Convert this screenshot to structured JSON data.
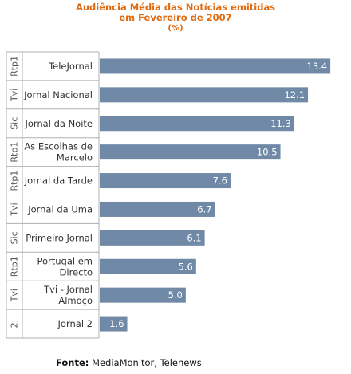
{
  "chart_data": {
    "type": "bar",
    "orientation": "horizontal",
    "title": "Audiência Média das Notícias emitidas",
    "subtitle": "em Fevereiro de 2007",
    "unit": "(%)",
    "groups": [
      "Rtp1",
      "Tvi",
      "Sic",
      "Rtp1",
      "Rtp1",
      "Tvi",
      "Sic",
      "Rtp1",
      "Tvi",
      "2:"
    ],
    "categories": [
      "TeleJornal",
      "Jornal Nacional",
      "Jornal da Noite",
      "As Escolhas de Marcelo",
      "Jornal da Tarde",
      "Jornal da Uma",
      "Primeiro Jornal",
      "Portugal em Directo",
      "Tvi - Jornal Almoço",
      "Jornal 2"
    ],
    "category_lines": [
      [
        "TeleJornal"
      ],
      [
        "Jornal Nacional"
      ],
      [
        "Jornal da Noite"
      ],
      [
        "As Escolhas de",
        "Marcelo"
      ],
      [
        "Jornal da Tarde"
      ],
      [
        "Jornal da Uma"
      ],
      [
        "Primeiro Jornal"
      ],
      [
        "Portugal em",
        "Directo"
      ],
      [
        "Tvi - Jornal",
        "Almoço"
      ],
      [
        "Jornal 2"
      ]
    ],
    "values": [
      13.4,
      12.1,
      11.3,
      10.5,
      7.6,
      6.7,
      6.1,
      5.6,
      5.0,
      1.6
    ],
    "value_labels": [
      "13.4",
      "12.1",
      "11.3",
      "10.5",
      "7.6",
      "6.7",
      "6.1",
      "5.6",
      "5.0",
      "1.6"
    ],
    "xlim": [
      0,
      14.6
    ],
    "grid": false,
    "legend": "none",
    "bar_color": "#7089a7",
    "value_label_color": "#ffffff"
  },
  "colors": {
    "title": "#e06a10",
    "axis": "#b0b0b0",
    "label_text": "#333333",
    "group_text": "#555555"
  },
  "footer": {
    "source_label": "Fonte:",
    "source_text": " MediaMonitor, Telenews"
  }
}
